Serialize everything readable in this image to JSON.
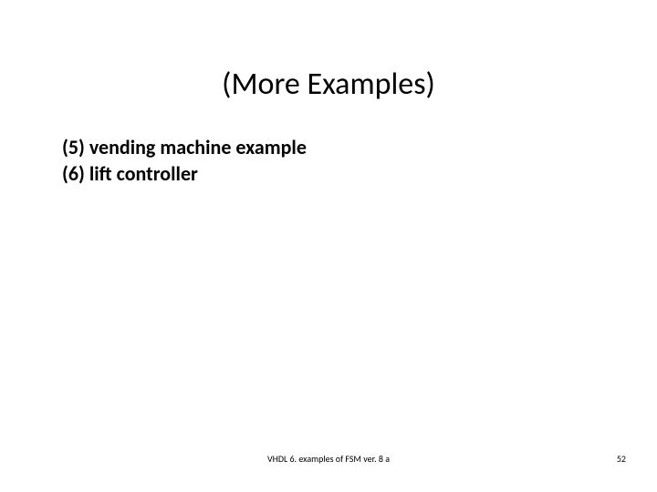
{
  "title": "(More Examples)",
  "body": {
    "line1": "(5) vending machine example",
    "line2": "(6) lift controller"
  },
  "footer": {
    "center": "VHDL 6. examples of FSM ver. 8 a",
    "page_number": "52"
  },
  "styles": {
    "title_fontsize": 34,
    "body_fontsize": 22,
    "footer_fontsize": 10,
    "background_color": "#ffffff",
    "text_color": "#000000"
  }
}
